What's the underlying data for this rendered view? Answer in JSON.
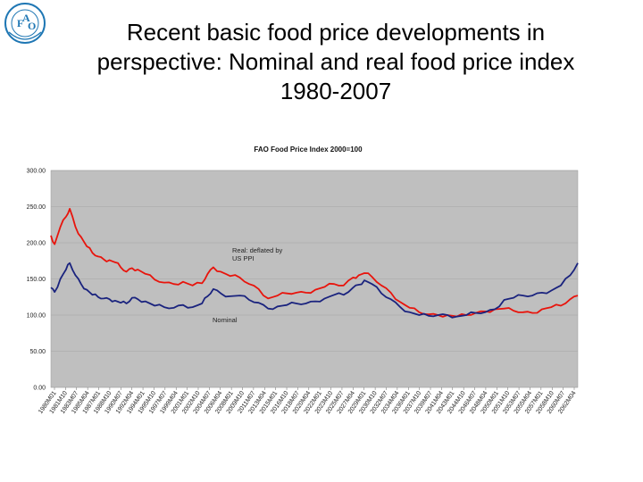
{
  "slide": {
    "title_line1": "Recent basic food price developments in",
    "title_line2": "perspective: Nominal and real food price index",
    "title_line3": "1980-2007"
  },
  "logo": {
    "icon": "fao-logo-icon",
    "text": "FAO FIAT PANIS",
    "color": "#1f77b4"
  },
  "chart_data": {
    "type": "line",
    "title": "FAO Food Price Index 2000=100",
    "xlabel": "",
    "ylabel": "",
    "ylim": [
      0,
      300
    ],
    "yticks": [
      "0.00",
      "50.00",
      "100.00",
      "150.00",
      "200.00",
      "250.00",
      "300.00"
    ],
    "grid": true,
    "xticks": [
      "1980M01",
      "1981M10",
      "1983M07",
      "1985M04",
      "1987M01",
      "1988M10",
      "1990M07",
      "1992M04",
      "1994M01",
      "1995M10",
      "1997M07",
      "1999M04",
      "2001M01",
      "2002M10",
      "2004M07",
      "2006M04",
      "2008M01",
      "2009M10",
      "2011M07",
      "2013M04",
      "2015M01",
      "2016M10",
      "2018M07",
      "2020M04",
      "2022M01",
      "2023M10",
      "2025M07",
      "2027M04",
      "2029M01",
      "2030M10",
      "2032M07",
      "2034M04",
      "2036M01",
      "2037M10",
      "2039M07",
      "2041M04",
      "2043M01",
      "2044M10",
      "2046M07",
      "2048M04",
      "2050M01",
      "2051M10",
      "2053M07",
      "2055M04",
      "2057M01",
      "2058M10",
      "2060M07",
      "2062M04"
    ],
    "x_range": [
      1980.0,
      2007.9
    ],
    "annotations": [
      {
        "text": "Real: deflated by",
        "series": "real"
      },
      {
        "text": "US PPI",
        "series": "real"
      },
      {
        "text": "Nominal",
        "series": "nominal"
      }
    ],
    "series": [
      {
        "name": "Real: deflated by US PPI",
        "color": "#e8140c",
        "x": [
          1980.0,
          1980.2,
          1980.5,
          1980.8,
          1981.0,
          1981.3,
          1981.6,
          1981.9,
          1982.2,
          1982.5,
          1982.8,
          1983.1,
          1983.4,
          1983.7,
          1984.0,
          1984.3,
          1984.6,
          1985.0,
          1985.5,
          1986.0,
          1986.5,
          1987.0,
          1987.5,
          1988.0,
          1988.3,
          1988.6,
          1989.0,
          1989.5,
          1990.0,
          1990.5,
          1991.0,
          1991.5,
          1992.0,
          1992.5,
          1993.0,
          1993.5,
          1994.0,
          1994.5,
          1995.0,
          1995.5,
          1996.0,
          1996.3,
          1996.6,
          1997.0,
          1997.5,
          1998.0,
          1998.5,
          1999.0,
          1999.5,
          2000.0,
          2000.5,
          2001.0,
          2001.5,
          2002.0,
          2002.5,
          2003.0,
          2003.5,
          2004.0,
          2004.5,
          2005.0,
          2005.5,
          2006.0,
          2006.5,
          2007.0,
          2007.5,
          2007.9
        ],
        "values": [
          210,
          198,
          222,
          236,
          247,
          222,
          208,
          195,
          186,
          181,
          177,
          176,
          173,
          166,
          160,
          165,
          163,
          157,
          149,
          145,
          143,
          146,
          141,
          144,
          157,
          166,
          160,
          154,
          152,
          143,
          136,
          123,
          127,
          130,
          131,
          131,
          135,
          139,
          143,
          141,
          152,
          155,
          158,
          153,
          141,
          131,
          118,
          110,
          104,
          101,
          100,
          100,
          98,
          100,
          103,
          105,
          108,
          109,
          106,
          104,
          103,
          108,
          111,
          113,
          122,
          127
        ]
      },
      {
        "name": "Nominal",
        "color": "#1a237e",
        "x": [
          1980.0,
          1980.2,
          1980.5,
          1980.8,
          1981.0,
          1981.3,
          1981.6,
          1981.9,
          1982.2,
          1982.5,
          1982.8,
          1983.1,
          1983.4,
          1983.7,
          1984.0,
          1984.3,
          1984.6,
          1985.0,
          1985.5,
          1986.0,
          1986.5,
          1987.0,
          1987.5,
          1988.0,
          1988.3,
          1988.6,
          1989.0,
          1989.5,
          1990.0,
          1990.5,
          1991.0,
          1991.5,
          1992.0,
          1992.5,
          1993.0,
          1993.5,
          1994.0,
          1994.5,
          1995.0,
          1995.5,
          1996.0,
          1996.3,
          1996.6,
          1997.0,
          1997.5,
          1998.0,
          1998.5,
          1999.0,
          1999.5,
          2000.0,
          2000.5,
          2001.0,
          2001.5,
          2002.0,
          2002.5,
          2003.0,
          2003.5,
          2004.0,
          2004.5,
          2005.0,
          2005.5,
          2006.0,
          2006.5,
          2007.0,
          2007.5,
          2007.9
        ],
        "values": [
          138,
          132,
          150,
          163,
          172,
          155,
          143,
          135,
          128,
          125,
          123,
          122,
          120,
          117,
          116,
          124,
          122,
          119,
          113,
          111,
          110,
          114,
          111,
          116,
          126,
          136,
          130,
          126,
          127,
          121,
          117,
          109,
          112,
          114,
          116,
          116,
          119,
          123,
          128,
          128,
          138,
          142,
          148,
          143,
          130,
          122,
          111,
          104,
          100,
          99,
          100,
          100,
          98,
          100,
          103,
          104,
          108,
          121,
          124,
          127,
          127,
          131,
          134,
          141,
          155,
          172
        ]
      }
    ]
  }
}
